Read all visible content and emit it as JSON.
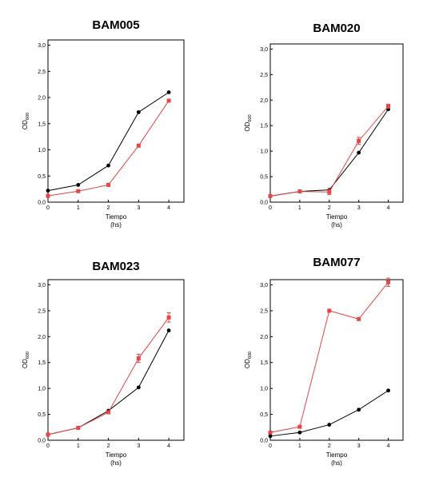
{
  "chart_data": [
    {
      "type": "line",
      "title": "BAM005",
      "xlabel": "Tiempo",
      "xlabel_unit": "(hs)",
      "ylabel_main": "OD",
      "ylabel_sub": "600",
      "xlim": [
        0,
        4.5
      ],
      "ylim": [
        0,
        3.1
      ],
      "xticks": [
        "0",
        "1",
        "2",
        "3",
        "4"
      ],
      "yticks": [
        "0,0",
        "0,5",
        "1,0",
        "1,5",
        "2,0",
        "2,5",
        "3,0"
      ],
      "grid": false,
      "series": [
        {
          "color": "#000000",
          "marker": "circle",
          "x": [
            0,
            1,
            2,
            3,
            4
          ],
          "values": [
            0.22,
            0.33,
            0.7,
            1.72,
            2.1
          ],
          "errors": [
            0,
            0,
            0,
            0,
            0
          ]
        },
        {
          "color": "#e84545",
          "marker": "square",
          "x": [
            0,
            1,
            2,
            3,
            4
          ],
          "values": [
            0.12,
            0.21,
            0.33,
            1.08,
            1.94
          ],
          "errors": [
            0,
            0,
            0,
            0,
            0
          ]
        }
      ]
    },
    {
      "type": "line",
      "title": "BAM020",
      "xlabel": "Tiempo",
      "xlabel_unit": "(hs)",
      "ylabel_main": "OD",
      "ylabel_sub": "600",
      "xlim": [
        0,
        4.5
      ],
      "ylim": [
        0,
        3.1
      ],
      "xticks": [
        "0",
        "1",
        "2",
        "3",
        "4"
      ],
      "yticks": [
        "0,0",
        "0,5",
        "1,0",
        "1,5",
        "2,0",
        "2,5",
        "3,0"
      ],
      "grid": false,
      "series": [
        {
          "color": "#000000",
          "marker": "circle",
          "x": [
            0,
            1,
            2,
            3,
            4
          ],
          "values": [
            0.12,
            0.21,
            0.24,
            0.97,
            1.82
          ],
          "errors": [
            0,
            0,
            0,
            0,
            0
          ]
        },
        {
          "color": "#e84545",
          "marker": "square",
          "x": [
            0,
            1,
            2,
            3,
            4
          ],
          "values": [
            0.12,
            0.21,
            0.2,
            1.2,
            1.88
          ],
          "errors": [
            0,
            0,
            0.05,
            0.07,
            0.04
          ]
        }
      ]
    },
    {
      "type": "line",
      "title": "BAM023",
      "xlabel": "Tiempo",
      "xlabel_unit": "(hs)",
      "ylabel_main": "OD",
      "ylabel_sub": "600",
      "xlim": [
        0,
        4.5
      ],
      "ylim": [
        0,
        3.1
      ],
      "xticks": [
        "0",
        "1",
        "2",
        "3",
        "4"
      ],
      "yticks": [
        "0,0",
        "0,5",
        "1,0",
        "1,5",
        "2,0",
        "2,5",
        "3,0"
      ],
      "grid": false,
      "series": [
        {
          "color": "#000000",
          "marker": "circle",
          "x": [
            0,
            1,
            2,
            3,
            4
          ],
          "values": [
            0.11,
            0.24,
            0.57,
            1.02,
            2.12
          ],
          "errors": [
            0,
            0,
            0,
            0,
            0
          ]
        },
        {
          "color": "#e84545",
          "marker": "square",
          "x": [
            0,
            1,
            2,
            3,
            4
          ],
          "values": [
            0.11,
            0.24,
            0.54,
            1.58,
            2.37
          ],
          "errors": [
            0,
            0,
            0.03,
            0.08,
            0.09
          ]
        }
      ]
    },
    {
      "type": "line",
      "title": "BAM077",
      "xlabel": "Tiempo",
      "xlabel_unit": "(hs)",
      "ylabel_main": "OD",
      "ylabel_sub": "600",
      "xlim": [
        0,
        4.5
      ],
      "ylim": [
        0,
        3.1
      ],
      "xticks": [
        "0",
        "1",
        "2",
        "3",
        "4"
      ],
      "yticks": [
        "0,0",
        "0,5",
        "1,0",
        "1,5",
        "2,0",
        "2,5",
        "3,0"
      ],
      "grid": false,
      "series": [
        {
          "color": "#000000",
          "marker": "circle",
          "x": [
            0,
            1,
            2,
            3,
            4
          ],
          "values": [
            0.08,
            0.15,
            0.3,
            0.59,
            0.96
          ],
          "errors": [
            0,
            0,
            0,
            0,
            0
          ]
        },
        {
          "color": "#e84545",
          "marker": "square",
          "x": [
            0,
            1,
            2,
            3,
            4
          ],
          "values": [
            0.15,
            0.26,
            2.5,
            2.34,
            3.05
          ],
          "errors": [
            0,
            0,
            0,
            0,
            0.08
          ]
        }
      ]
    }
  ]
}
